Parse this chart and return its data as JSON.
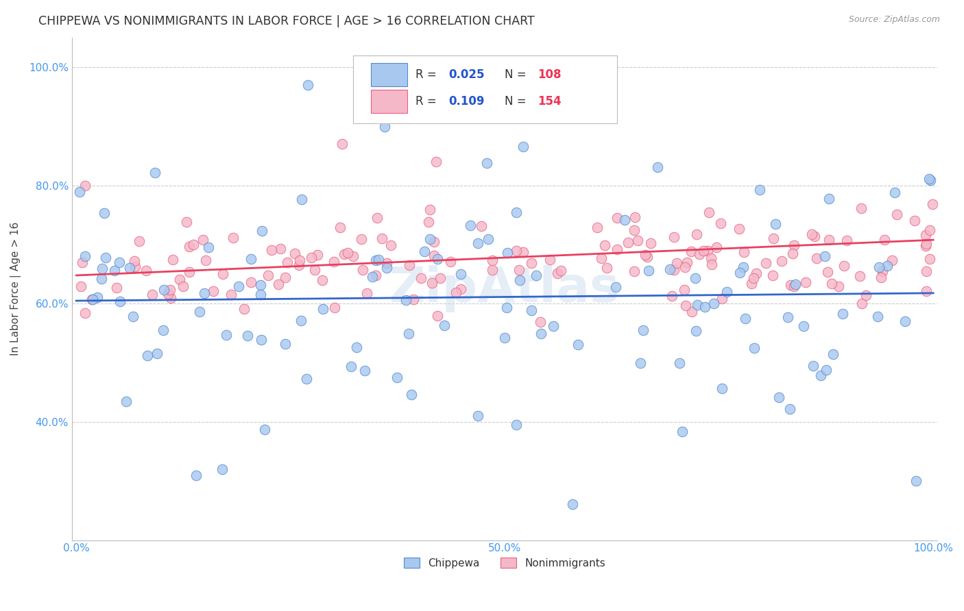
{
  "title": "CHIPPEWA VS NONIMMIGRANTS IN LABOR FORCE | AGE > 16 CORRELATION CHART",
  "source": "Source: ZipAtlas.com",
  "ylabel": "In Labor Force | Age > 16",
  "legend_r_blue": "0.025",
  "legend_n_blue": "108",
  "legend_r_pink": "0.109",
  "legend_n_pink": "154",
  "blue_fill": "#A8C8F0",
  "pink_fill": "#F5B8C8",
  "blue_edge": "#5588CC",
  "pink_edge": "#E86080",
  "line_blue": "#3366CC",
  "line_pink": "#E84060",
  "bg_color": "#FFFFFF",
  "grid_color": "#CCCCCC",
  "title_color": "#333333",
  "axis_label_color": "#444444",
  "tick_color": "#4499EE",
  "r_color": "#2255CC",
  "n_color": "#EE3355",
  "xmin": 0.0,
  "xmax": 1.0,
  "ymin": 0.2,
  "ymax": 1.05,
  "yticks": [
    0.4,
    0.6,
    0.8,
    1.0
  ],
  "ytick_labels": [
    "40.0%",
    "60.0%",
    "80.0%",
    "100.0%"
  ],
  "xticks": [
    0.0,
    0.5,
    1.0
  ],
  "xtick_labels": [
    "0.0%",
    "50.0%",
    "100.0%"
  ],
  "blue_line_y0": 0.605,
  "blue_line_y1": 0.618,
  "pink_line_y0": 0.648,
  "pink_line_y1": 0.708,
  "watermark": "ZipAtlas",
  "watermark_color": "#CCDDEE",
  "watermark_alpha": 0.5
}
